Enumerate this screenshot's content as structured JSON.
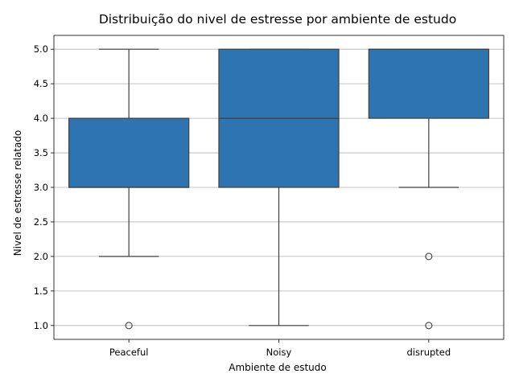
{
  "chart_data": {
    "type": "box",
    "title": "Distribuição do nivel de estresse por ambiente de estudo",
    "xlabel": "Ambiente de estudo",
    "ylabel": "Nivel de estresse relatado",
    "categories": [
      "Peaceful",
      "Noisy",
      "disrupted"
    ],
    "boxes": [
      {
        "category": "Peaceful",
        "whisker_low": 2.0,
        "q1": 3.0,
        "median": 3.0,
        "q3": 4.0,
        "whisker_high": 5.0,
        "outliers": [
          1.0
        ]
      },
      {
        "category": "Noisy",
        "whisker_low": 1.0,
        "q1": 3.0,
        "median": 4.0,
        "q3": 5.0,
        "whisker_high": 5.0,
        "outliers": []
      },
      {
        "category": "disrupted",
        "whisker_low": 3.0,
        "q1": 4.0,
        "median": 5.0,
        "q3": 5.0,
        "whisker_high": 5.0,
        "outliers": [
          1.0,
          2.0
        ]
      }
    ],
    "ylim": [
      0.8,
      5.2
    ],
    "yticks": [
      1.0,
      1.5,
      2.0,
      2.5,
      3.0,
      3.5,
      4.0,
      4.5,
      5.0
    ],
    "ytick_labels": [
      "1.0",
      "1.5",
      "2.0",
      "2.5",
      "3.0",
      "3.5",
      "4.0",
      "4.5",
      "5.0"
    ],
    "grid": "y",
    "legend": "none",
    "colors": {
      "box_fill": "#2e74b0",
      "line": "#3f3f3f",
      "grid": "#b0b0b0"
    }
  }
}
